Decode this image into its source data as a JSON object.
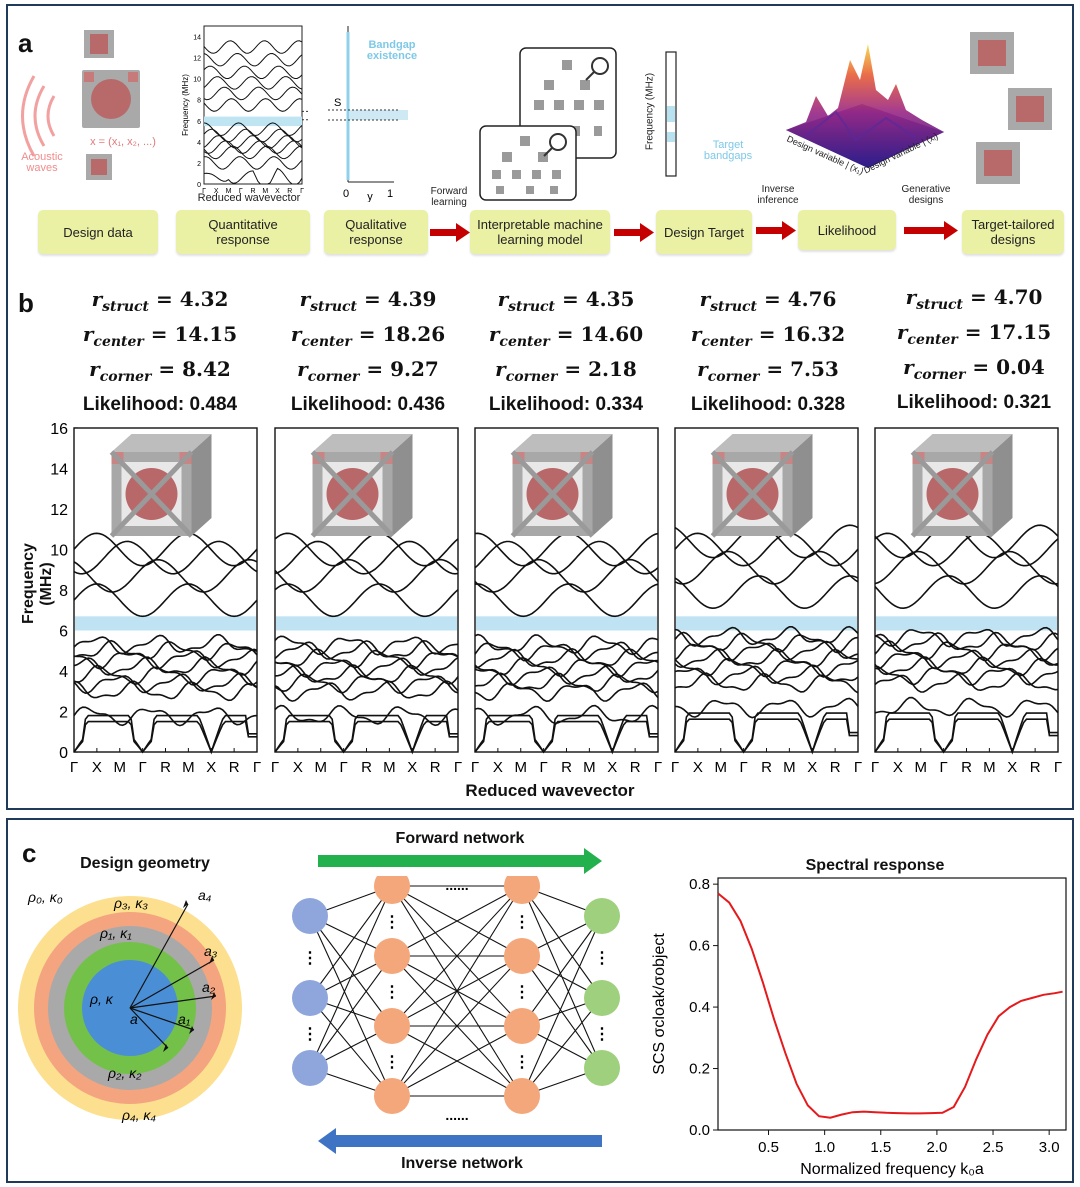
{
  "panel_labels": {
    "a": "a",
    "b": "b",
    "c": "c"
  },
  "panel_a": {
    "acoustic": "Acoustic\nwaves",
    "x_vector": "x = (x₁, x₂, ...)",
    "mini_bands": {
      "ylabel": "Frequency (MHz)",
      "xlabel": "Reduced wavevector",
      "yticks": [
        "0",
        "2",
        "4",
        "6",
        "8",
        "10",
        "12",
        "14"
      ],
      "xticks": [
        "Γ",
        "X",
        "M",
        "Γ",
        "R",
        "M",
        "X",
        "R",
        "Γ"
      ]
    },
    "bandgap_plot": {
      "title": "Bandgap\nexistence",
      "ylabel": "S",
      "x0": "0",
      "xy": "y",
      "x1": "1"
    },
    "forward_learning": "Forward\nlearning",
    "target_plot": {
      "ylabel": "Frequency (MHz)",
      "label": "Target\nbandgaps"
    },
    "inverse_inference": "Inverse\ninference",
    "surface": {
      "axis1": "Design variable | (x₁)",
      "axis2": "Design variable | (xᵢ)"
    },
    "generative_designs": "Generative\ndesigns",
    "flow": [
      "Design data",
      "Quantitative\nresponse",
      "Qualitative\nresponse",
      "Interpretable machine\nlearning model",
      "Design Target",
      "Likelihood",
      "Target-tailored\ndesigns"
    ]
  },
  "panel_b": {
    "ylabel": "Frequency (MHz)",
    "xlabel": "Reduced wavevector",
    "yticks": [
      "0",
      "2",
      "4",
      "6",
      "8",
      "10",
      "12",
      "14",
      "16"
    ],
    "xticks": [
      "Γ",
      "X",
      "M",
      "Γ",
      "R",
      "M",
      "X",
      "R",
      "Γ"
    ],
    "bandgap_mhz": [
      6.0,
      6.7
    ],
    "designs": [
      {
        "r_struct": "4.32",
        "r_center": "14.15",
        "r_corner": "8.42",
        "likelihood": "Likelihood: 0.484"
      },
      {
        "r_struct": "4.39",
        "r_center": "18.26",
        "r_corner": "9.27",
        "likelihood": "Likelihood: 0.436"
      },
      {
        "r_struct": "4.35",
        "r_center": "14.60",
        "r_corner": "2.18",
        "likelihood": "Likelihood: 0.334"
      },
      {
        "r_struct": "4.76",
        "r_center": "16.32",
        "r_corner": "7.53",
        "likelihood": "Likelihood: 0.328"
      },
      {
        "r_struct": "4.70",
        "r_center": "17.15",
        "r_corner": "0.04",
        "likelihood": "Likelihood: 0.321"
      }
    ]
  },
  "panel_c": {
    "geometry_title": "Design geometry",
    "layer_labels": [
      "ρ₀, κ₀",
      "ρ₃, κ₃",
      "ρ₁, κ₁",
      "ρ, κ",
      "ρ₂, κ₂",
      "ρ₄, κ₄"
    ],
    "radius_labels": [
      "a₄",
      "a₃",
      "a₂",
      "a₁",
      "a"
    ],
    "forward_network": "Forward network",
    "inverse_network": "Inverse network",
    "dots_h": "......",
    "dots_v": "⋮",
    "spectral_title": "Spectral response",
    "ylabel_prefix": "SCS",
    "ylabel_ratio": "σcloak/σobject",
    "xlabel": "Normalized frequency k₀a"
  },
  "chart_data": {
    "type": "line",
    "title": "Spectral response",
    "xlabel": "Normalized frequency k₀a",
    "ylabel": "SCS σcloak/σobject",
    "xlim": [
      0.05,
      3.15
    ],
    "ylim": [
      0.0,
      0.82
    ],
    "xticks": [
      0.5,
      1.0,
      1.5,
      2.0,
      2.5,
      3.0
    ],
    "yticks": [
      0.0,
      0.2,
      0.4,
      0.6,
      0.8
    ],
    "series": [
      {
        "color": "#e41a1c",
        "x": [
          0.05,
          0.15,
          0.25,
          0.35,
          0.45,
          0.55,
          0.65,
          0.75,
          0.85,
          0.95,
          1.05,
          1.15,
          1.25,
          1.35,
          1.45,
          1.55,
          1.65,
          1.75,
          1.85,
          1.95,
          2.05,
          2.15,
          2.25,
          2.35,
          2.45,
          2.55,
          2.65,
          2.75,
          2.85,
          2.95,
          3.05,
          3.12
        ],
        "y": [
          0.77,
          0.74,
          0.68,
          0.59,
          0.48,
          0.36,
          0.25,
          0.15,
          0.08,
          0.045,
          0.04,
          0.05,
          0.058,
          0.06,
          0.058,
          0.056,
          0.055,
          0.054,
          0.054,
          0.055,
          0.056,
          0.075,
          0.14,
          0.23,
          0.31,
          0.37,
          0.4,
          0.42,
          0.43,
          0.44,
          0.445,
          0.45
        ]
      }
    ]
  }
}
